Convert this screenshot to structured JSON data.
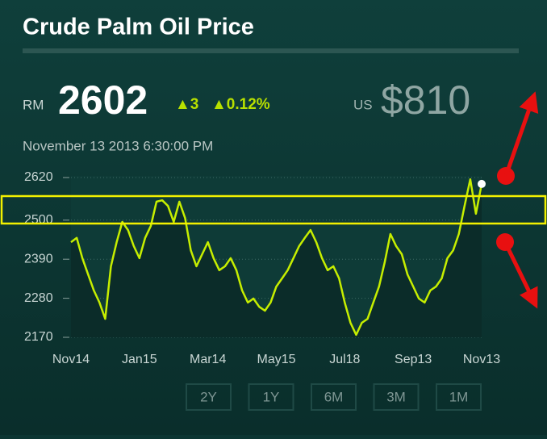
{
  "header": {
    "title": "Crude Palm Oil Price",
    "currency_local": "RM",
    "price_local": "2602",
    "change": "▲3",
    "change_pct": "▲0.12%",
    "currency_usd": "US",
    "price_usd": "$810",
    "timestamp": "November 13 2013 6:30:00 PM"
  },
  "chart_data": {
    "type": "line",
    "color": "#c6ee00",
    "categories": [
      "Nov14",
      null,
      null,
      null,
      null,
      null,
      null,
      null,
      null,
      null,
      null,
      null,
      "Jan15",
      null,
      null,
      null,
      null,
      null,
      null,
      null,
      null,
      null,
      null,
      null,
      "Mar14",
      null,
      null,
      null,
      null,
      null,
      null,
      null,
      null,
      null,
      null,
      null,
      "May15",
      null,
      null,
      null,
      null,
      null,
      null,
      null,
      null,
      null,
      null,
      null,
      "Jul18",
      null,
      null,
      null,
      null,
      null,
      null,
      null,
      null,
      null,
      null,
      null,
      "Sep13",
      null,
      null,
      null,
      null,
      null,
      null,
      null,
      null,
      null,
      null,
      null,
      "Nov13"
    ],
    "values": [
      2438,
      2450,
      2393,
      2347,
      2302,
      2268,
      2222,
      2370,
      2438,
      2495,
      2472,
      2427,
      2393,
      2450,
      2484,
      2552,
      2556,
      2540,
      2495,
      2552,
      2506,
      2415,
      2370,
      2404,
      2438,
      2393,
      2359,
      2370,
      2393,
      2359,
      2302,
      2268,
      2279,
      2256,
      2245,
      2268,
      2313,
      2336,
      2359,
      2393,
      2427,
      2450,
      2472,
      2438,
      2393,
      2359,
      2370,
      2336,
      2268,
      2211,
      2177,
      2211,
      2222,
      2268,
      2313,
      2381,
      2461,
      2427,
      2404,
      2347,
      2313,
      2279,
      2268,
      2302,
      2313,
      2336,
      2393,
      2415,
      2461,
      2540,
      2615,
      2518,
      2602
    ],
    "ylim": [
      2170,
      2620
    ],
    "yticks": [
      2170,
      2280,
      2390,
      2500,
      2620
    ],
    "grid": true
  },
  "range_buttons": [
    "2Y",
    "1Y",
    "6M",
    "3M",
    "1M"
  ]
}
